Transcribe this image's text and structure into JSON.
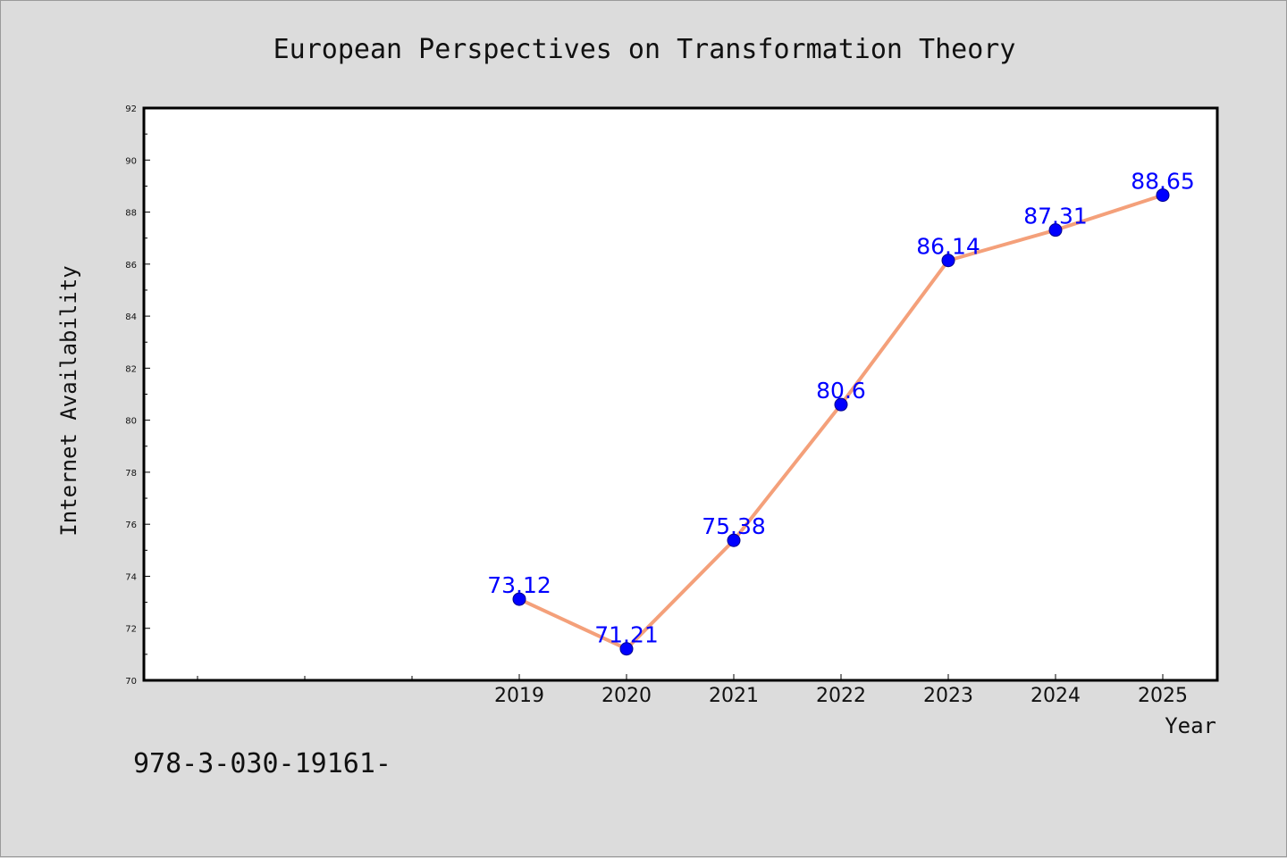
{
  "chart_data": {
    "type": "line",
    "title": "European Perspectives on Transformation Theory",
    "xlabel": "Year",
    "ylabel": "Internet Availability",
    "x": [
      "2019",
      "2020",
      "2021",
      "2022",
      "2023",
      "2024",
      "2025"
    ],
    "series": [
      {
        "values": [
          73.12,
          71.21,
          75.38,
          80.6,
          86.14,
          87.31,
          88.65
        ],
        "labels": [
          "73.12",
          "71.21",
          "75.38",
          "80.6",
          "86.14",
          "87.31",
          "88.65"
        ],
        "line_color": "#f4a07a",
        "marker_color": "#0000ff"
      }
    ],
    "ylim": [
      70,
      92
    ],
    "yticks": [
      "70",
      "72",
      "74",
      "76",
      "78",
      "80",
      "82",
      "84",
      "86",
      "88",
      "90",
      "92"
    ],
    "grid": false,
    "legend": "none",
    "label_color": "#0000ff"
  },
  "footer": {
    "text": "978-3-030-19161-"
  },
  "colors": {
    "background": "#dcdcdc",
    "plot_background": "#ffffff"
  }
}
